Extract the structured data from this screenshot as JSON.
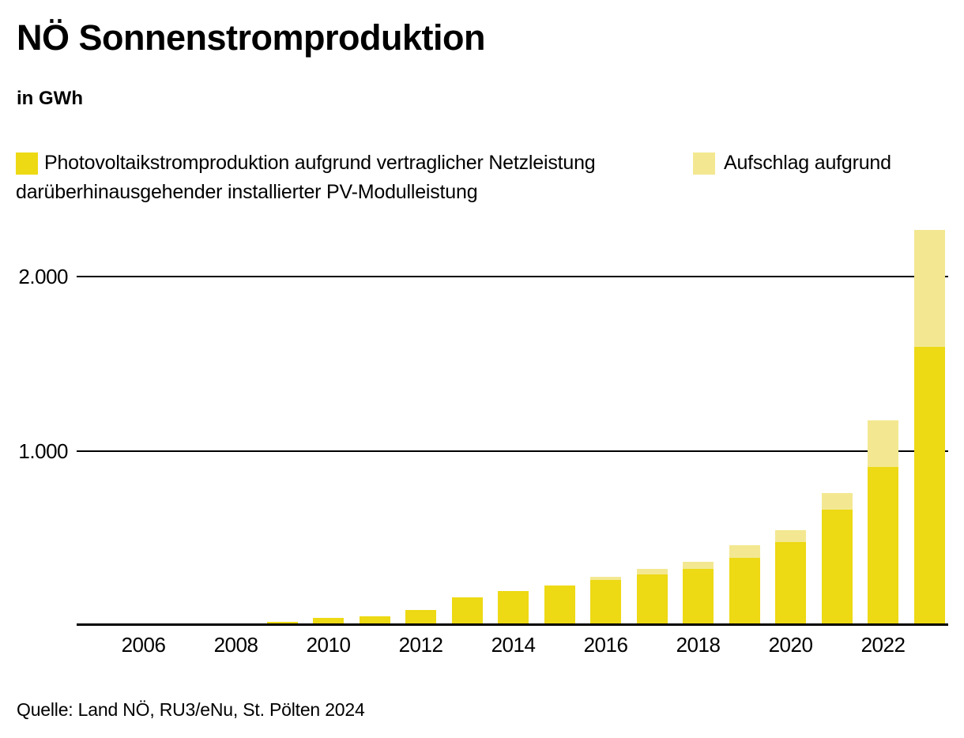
{
  "title": "NÖ Sonnenstromproduktion",
  "subtitle": "in GWh",
  "legend": {
    "series1_label": "Photovoltaikstromproduktion aufgrund vertraglicher Netzleistung",
    "series2_label_line1": "Aufschlag aufgrund",
    "series2_label_line2": "darüberhinausgehender installierter PV-Modulleistung"
  },
  "colors": {
    "primary_yellow": "#EDD914",
    "light_yellow": "#F3E891",
    "axis_black": "#000000",
    "background": "#FFFFFF"
  },
  "y_axis": {
    "tick_labels": [
      "2.000",
      "1.000"
    ],
    "tick_values": [
      2000,
      1000
    ]
  },
  "x_axis": {
    "tick_labels": [
      "2006",
      "2008",
      "2010",
      "2012",
      "2014",
      "2016",
      "2018",
      "2020",
      "2022"
    ]
  },
  "source": "Quelle: Land NÖ, RU3/eNu, St. Pölten 2024",
  "chart_data": {
    "type": "bar",
    "stacked": true,
    "title": "NÖ Sonnenstromproduktion",
    "ylabel": "GWh",
    "xlabel": "",
    "ylim": [
      0,
      2350
    ],
    "grid": "horizontal",
    "gridline_values": [
      1000,
      2000
    ],
    "legend_position": "top",
    "categories": [
      2005,
      2006,
      2007,
      2008,
      2009,
      2010,
      2011,
      2012,
      2013,
      2014,
      2015,
      2016,
      2017,
      2018,
      2019,
      2020,
      2021,
      2022,
      2023
    ],
    "series": [
      {
        "name": "Photovoltaikstromproduktion aufgrund vertraglicher Netzleistung",
        "color": "#EDD914",
        "values": [
          0,
          0,
          1,
          3,
          18,
          39,
          52,
          86,
          158,
          194,
          226,
          259,
          289,
          322,
          387,
          478,
          660,
          906,
          1598
        ]
      },
      {
        "name": "Aufschlag aufgrund darüberhinausgehender installierter PV-Modulleistung",
        "color": "#F3E891",
        "values": [
          0,
          0,
          0,
          0,
          0,
          0,
          0,
          0,
          0,
          0,
          0,
          18,
          34,
          43,
          72,
          68,
          98,
          268,
          668
        ]
      }
    ]
  }
}
